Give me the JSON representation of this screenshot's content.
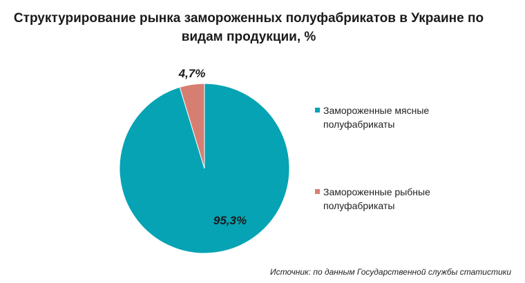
{
  "title_line1": "Структурирование рынка замороженных полуфабрикатов в Украине по",
  "title_line2": "видам продукции, %",
  "source": "Источник: по данным Государственной службы статистики",
  "chart_data": {
    "type": "pie",
    "title": "Структурирование рынка замороженных полуфабрикатов в Украине по видам продукции, %",
    "slices": [
      {
        "label_lines": [
          "Замороженные мясные",
          "полуфабрикаты"
        ],
        "value": 95.3,
        "value_label": "95,3%",
        "color": "#05A3B4"
      },
      {
        "label_lines": [
          "Замороженные рыбные",
          "полуфабрикаты"
        ],
        "value": 4.7,
        "value_label": "4,7%",
        "color": "#D67E72"
      }
    ],
    "legend_position": "right"
  }
}
